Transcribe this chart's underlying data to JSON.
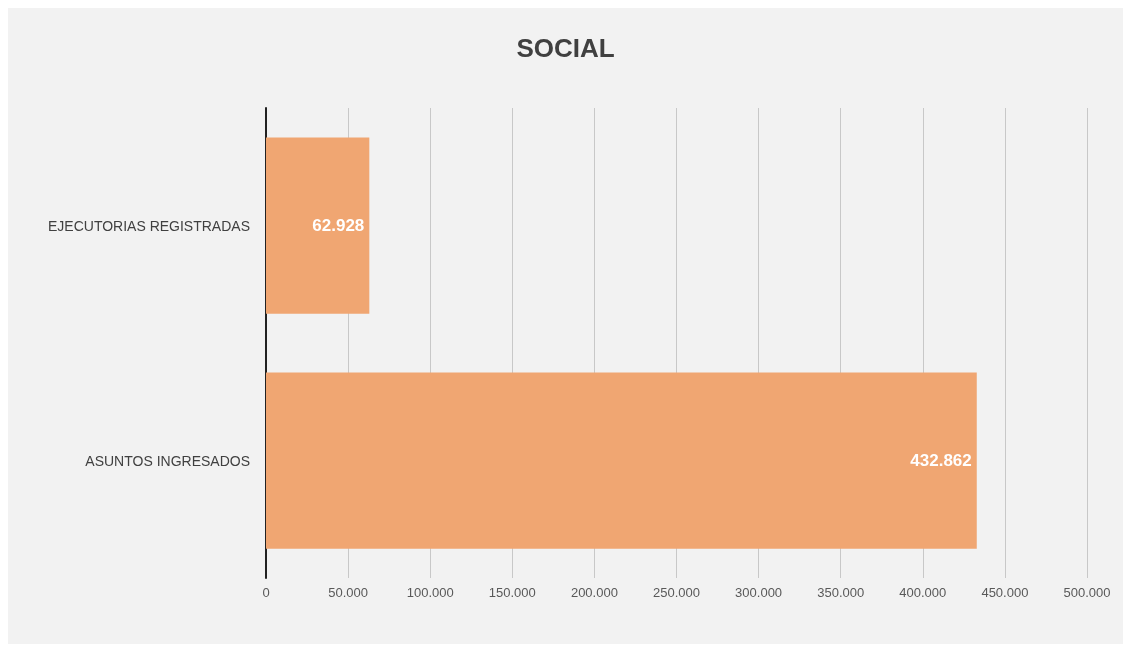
{
  "chart_data": {
    "type": "bar",
    "title": "SOCIAL",
    "orientation": "horizontal",
    "categories": [
      "EJECUTORIAS REGISTRADAS",
      "ASUNTOS INGRESADOS"
    ],
    "values": [
      62928,
      432862
    ],
    "color": "#f0a672",
    "value_labels": [
      "62.928",
      "432.862"
    ],
    "xlim": [
      0,
      500000
    ],
    "xticks": [
      0,
      {
        "value": 50000,
        "label": "50.000"
      },
      {
        "value": 100000,
        "label": "100.000"
      },
      {
        "value": 150000,
        "label": "150.000"
      },
      {
        "value": 200000,
        "label": "200.000"
      },
      {
        "value": 250000,
        "label": "250.000"
      },
      {
        "value": 300000,
        "label": "300.000"
      },
      {
        "value": 350000,
        "label": "350.000"
      },
      {
        "value": 400000,
        "label": "400.000"
      },
      {
        "value": 450000,
        "label": "450.000"
      },
      {
        "value": 500000,
        "label": "500.000"
      }
    ],
    "grid": "x"
  }
}
